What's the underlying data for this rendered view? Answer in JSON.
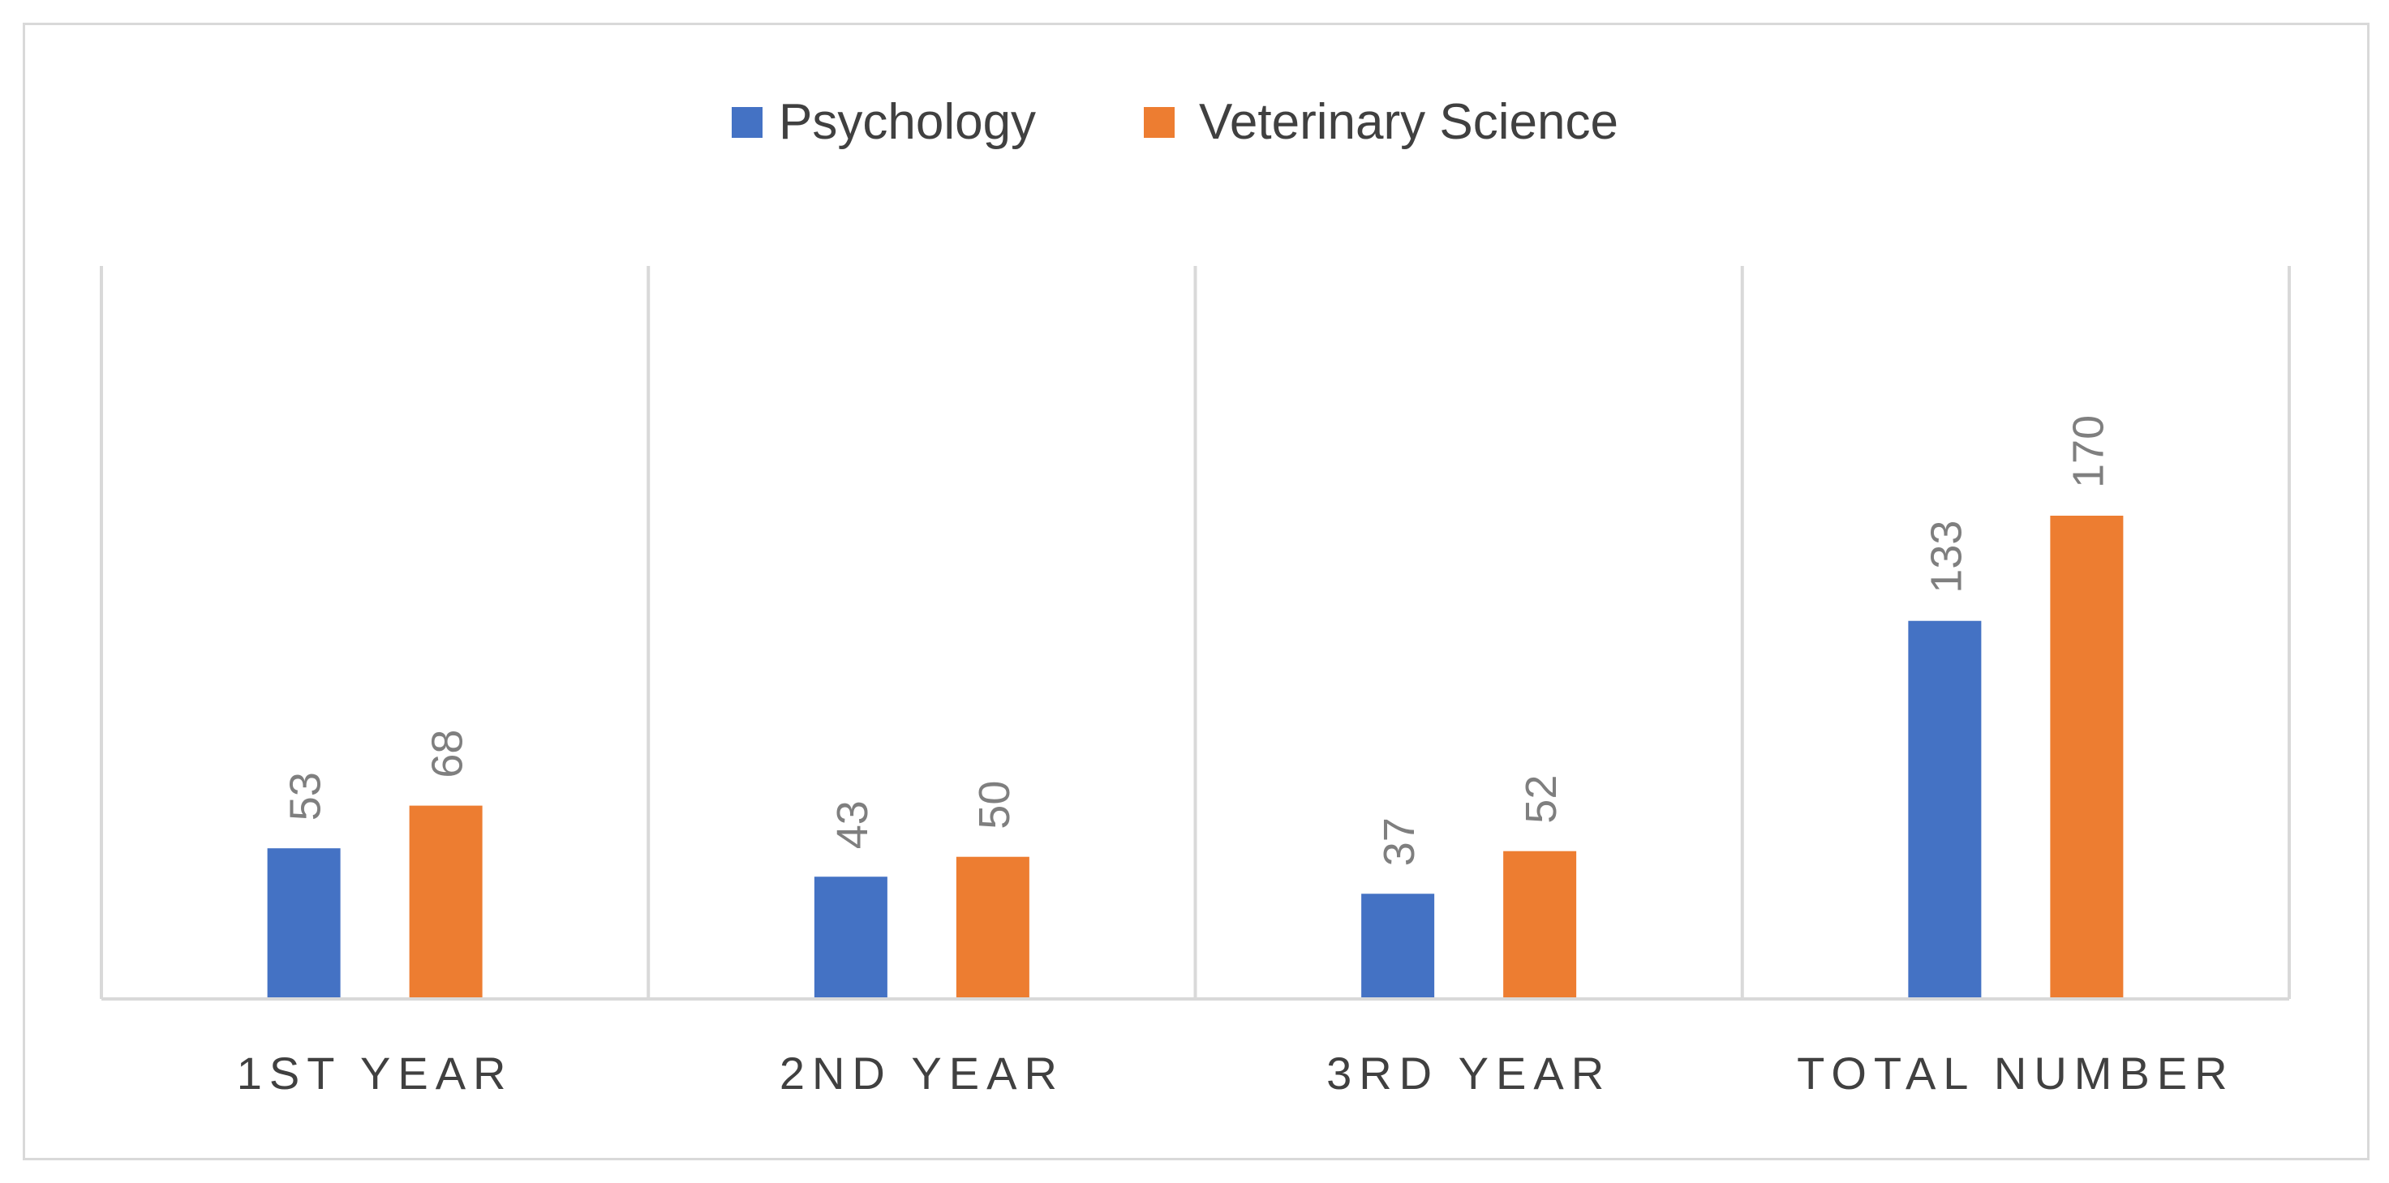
{
  "chart_data": {
    "type": "bar",
    "title": "",
    "xlabel": "",
    "ylabel": "",
    "categories": [
      "1ST YEAR",
      "2ND YEAR",
      "3RD YEAR",
      "TOTAL NUMBER"
    ],
    "series": [
      {
        "name": "Psychology",
        "values": [
          53,
          43,
          37,
          133
        ],
        "color": "#4472c4"
      },
      {
        "name": "Veterinary Science",
        "values": [
          68,
          50,
          52,
          170
        ],
        "color": "#ed7d31"
      }
    ],
    "ylim": [
      0,
      200
    ],
    "grid": false,
    "data_labels": true,
    "legend_position": "top"
  }
}
